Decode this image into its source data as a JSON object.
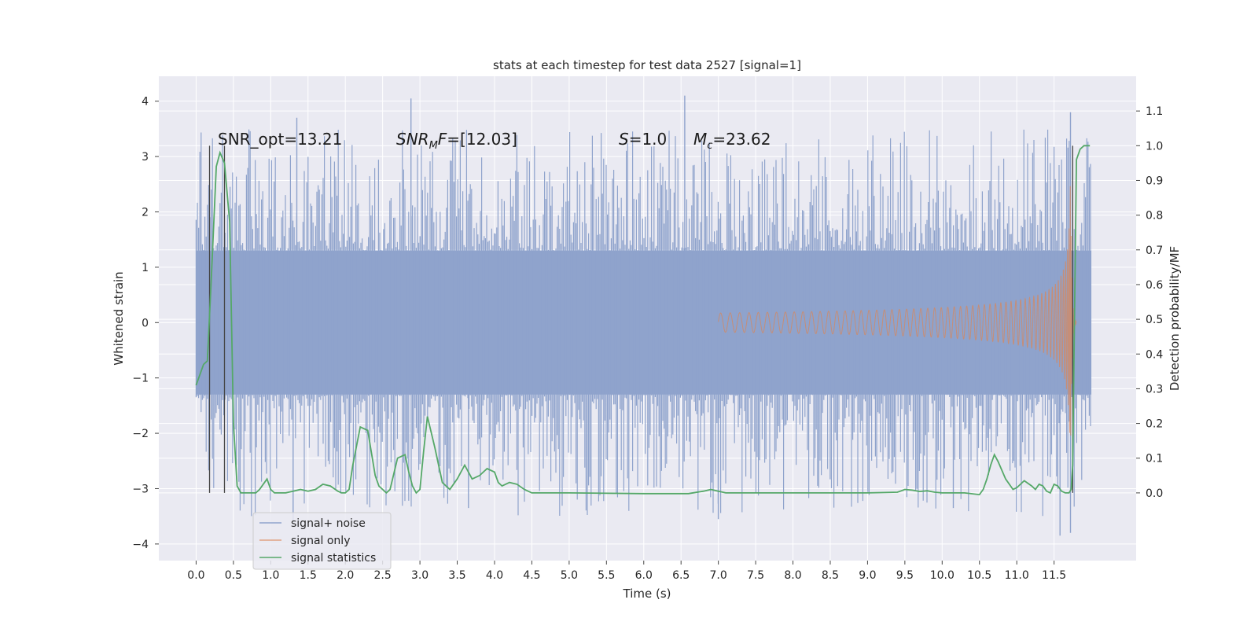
{
  "chart_data": {
    "type": "line",
    "title": "stats at each timestep for test data 2527 [signal=1]",
    "xlabel": "Time (s)",
    "ylabel": "Whitened strain",
    "y2label": "Detection probability/MF",
    "xlim": [
      -0.5,
      12.6
    ],
    "ylim": [
      -4.3,
      4.45
    ],
    "y2lim": [
      -0.195,
      1.2
    ],
    "grid": true,
    "legend_position": "lower-left",
    "x_ticks": [
      0.0,
      0.5,
      1.0,
      1.5,
      2.0,
      2.5,
      3.0,
      3.5,
      4.0,
      4.5,
      5.0,
      5.5,
      6.0,
      6.5,
      7.0,
      7.5,
      8.0,
      8.5,
      9.0,
      9.5,
      10.0,
      10.5,
      11.0,
      11.5
    ],
    "x_tick_labels": [
      "0.0",
      "0.5",
      "1.0",
      "1.5",
      "2.0",
      "2.5",
      "3.0",
      "3.5",
      "4.0",
      "4.5",
      "5.0",
      "5.5",
      "6.0",
      "6.5",
      "7.0",
      "7.5",
      "8.0",
      "8.5",
      "9.0",
      "9.5",
      "10.0",
      "10.5",
      "11.0",
      "11.5"
    ],
    "y_ticks": [
      4,
      3,
      2,
      1,
      0,
      -1,
      -2,
      -3,
      -4
    ],
    "y_tick_labels": [
      "4",
      "3",
      "2",
      "1",
      "0",
      "−1",
      "−2",
      "−3",
      "−4"
    ],
    "y2_ticks": [
      1.1,
      1.0,
      0.9,
      0.8,
      0.7,
      0.6,
      0.5,
      0.4,
      0.3,
      0.2,
      0.1,
      0.0
    ],
    "y2_tick_labels": [
      "1.1",
      "1.0",
      "0.9",
      "0.8",
      "0.7",
      "0.6",
      "0.5",
      "0.4",
      "0.3",
      "0.2",
      "0.1",
      "0.0"
    ],
    "annotations": {
      "snr_opt": "SNR_opt=13.21",
      "snr_mf_main": "SNR",
      "snr_mf_sub": "M",
      "snr_mf_rest": "F=[12.03]",
      "s_main": "S",
      "s_rest": "=1.0",
      "mc_main": "M",
      "mc_sub": "c",
      "mc_rest": "=23.62"
    },
    "vertical_markers_x": [
      0.18,
      0.38,
      11.75
    ],
    "series": [
      {
        "name": "signal+ noise",
        "color": "#8fa3cc",
        "kind": "noise_band",
        "t_start": 0.0,
        "t_end": 12.0,
        "core_amplitude": 1.3,
        "peak_amplitude": 3.8,
        "peaks": [
          [
            1.35,
            3.7
          ],
          [
            2.88,
            4.05
          ],
          [
            6.55,
            4.1
          ],
          [
            11.72,
            3.8
          ],
          [
            1.3,
            -3.6
          ],
          [
            7.0,
            -3.55
          ],
          [
            11.58,
            -3.85
          ],
          [
            11.72,
            -3.8
          ],
          [
            3.65,
            -3.35
          ],
          [
            10.15,
            -3.35
          ]
        ]
      },
      {
        "name": "signal only",
        "color": "#dd8452",
        "kind": "chirp",
        "t_start": 7.0,
        "t_merge": 11.72,
        "t_end": 11.8,
        "peak_amplitude": 2.55
      },
      {
        "name": "signal statistics",
        "color": "#55a868",
        "kind": "line",
        "axis": "right",
        "x": [
          0.0,
          0.1,
          0.15,
          0.2,
          0.27,
          0.32,
          0.38,
          0.45,
          0.5,
          0.55,
          0.6,
          0.65,
          0.7,
          0.8,
          0.85,
          0.95,
          1.0,
          1.05,
          1.1,
          1.2,
          1.3,
          1.4,
          1.5,
          1.6,
          1.7,
          1.8,
          1.9,
          1.95,
          2.0,
          2.05,
          2.1,
          2.2,
          2.3,
          2.4,
          2.45,
          2.55,
          2.6,
          2.7,
          2.8,
          2.85,
          2.9,
          2.95,
          3.0,
          3.05,
          3.1,
          3.2,
          3.3,
          3.4,
          3.5,
          3.6,
          3.65,
          3.7,
          3.8,
          3.9,
          4.0,
          4.05,
          4.1,
          4.2,
          4.3,
          4.4,
          4.5,
          5.0,
          6.0,
          6.6,
          6.8,
          6.9,
          7.0,
          7.1,
          7.5,
          8.0,
          9.0,
          9.4,
          9.5,
          9.6,
          9.7,
          9.8,
          9.9,
          10.0,
          10.3,
          10.5,
          10.55,
          10.6,
          10.65,
          10.7,
          10.75,
          10.85,
          10.95,
          11.0,
          11.05,
          11.1,
          11.2,
          11.25,
          11.3,
          11.35,
          11.4,
          11.45,
          11.5,
          11.55,
          11.6,
          11.65,
          11.7,
          11.73,
          11.75,
          11.8,
          11.85,
          11.9,
          11.95,
          11.98
        ],
        "y": [
          0.31,
          0.37,
          0.38,
          0.6,
          0.94,
          0.98,
          0.95,
          0.78,
          0.2,
          0.02,
          0.0,
          0.0,
          0.0,
          0.0,
          0.01,
          0.04,
          0.01,
          0.0,
          0.0,
          0.0,
          0.005,
          0.01,
          0.005,
          0.01,
          0.025,
          0.02,
          0.005,
          0.0,
          0.0,
          0.01,
          0.08,
          0.19,
          0.18,
          0.05,
          0.02,
          0.0,
          0.01,
          0.1,
          0.11,
          0.06,
          0.02,
          0.0,
          0.01,
          0.12,
          0.22,
          0.13,
          0.03,
          0.01,
          0.04,
          0.08,
          0.06,
          0.04,
          0.05,
          0.07,
          0.06,
          0.03,
          0.02,
          0.03,
          0.025,
          0.01,
          0.0,
          0.0,
          -0.002,
          -0.002,
          0.005,
          0.01,
          0.005,
          0.0,
          0.0,
          0.0,
          0.0,
          0.002,
          0.01,
          0.008,
          0.004,
          0.006,
          0.002,
          0.0,
          0.0,
          -0.005,
          0.01,
          0.04,
          0.08,
          0.11,
          0.09,
          0.04,
          0.01,
          0.015,
          0.025,
          0.035,
          0.02,
          0.01,
          0.025,
          0.02,
          0.005,
          0.0,
          0.025,
          0.02,
          0.005,
          0.0,
          0.0,
          0.01,
          0.08,
          0.96,
          0.99,
          1.0,
          1.0,
          1.0
        ]
      }
    ]
  }
}
